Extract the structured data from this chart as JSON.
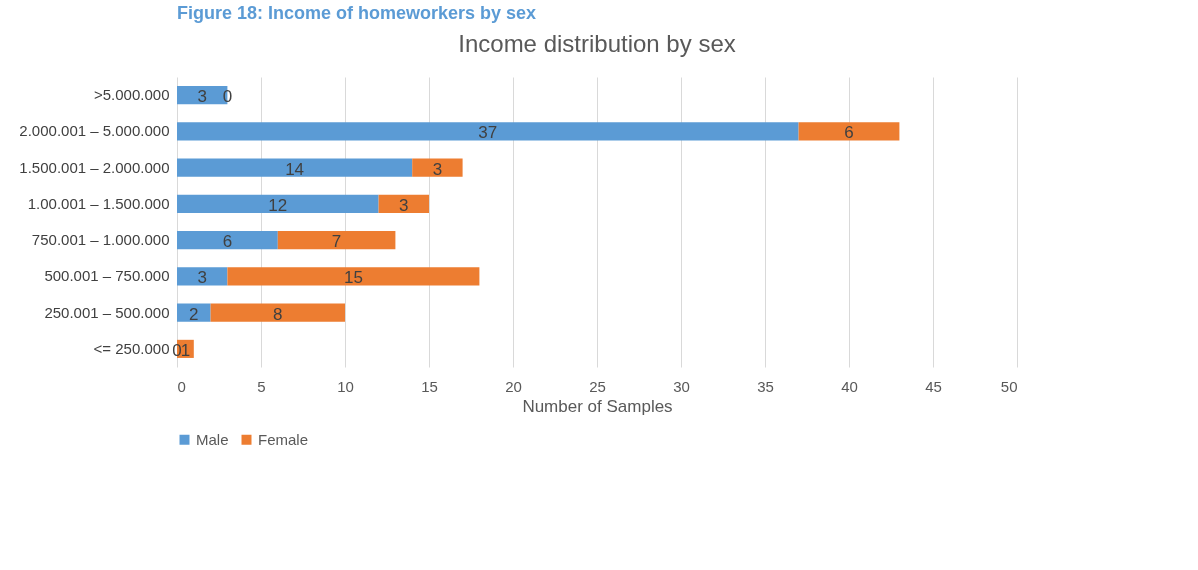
{
  "chart_data": {
    "type": "bar",
    "orientation": "horizontal",
    "stacked": true,
    "title": "Income distribution by sex",
    "annotations": [
      "Figure 18: Income of homeworkers by sex"
    ],
    "xlabel": "Number of Samples",
    "categories": [
      ">5.000.000",
      "2.000.001 –   5.000.000",
      "1.500.001 – 2.000.000",
      "1.00.001 – 1.500.000",
      "750.001 – 1.000.000",
      "500.001 – 750.000",
      "250.001 – 500.000",
      "<= 250.000"
    ],
    "series": [
      {
        "name": "Male",
        "color": "#5b9bd5",
        "values": [
          3,
          37,
          14,
          12,
          6,
          3,
          2,
          0
        ]
      },
      {
        "name": "Female",
        "color": "#ed7d31",
        "values": [
          0,
          6,
          3,
          3,
          7,
          15,
          8,
          1
        ]
      }
    ],
    "xlim": [
      0,
      50
    ],
    "xticks": [
      0,
      5,
      10,
      15,
      20,
      25,
      30,
      35,
      40,
      45,
      50
    ],
    "grid": "x",
    "legend": "bottom",
    "data_labels": true
  }
}
